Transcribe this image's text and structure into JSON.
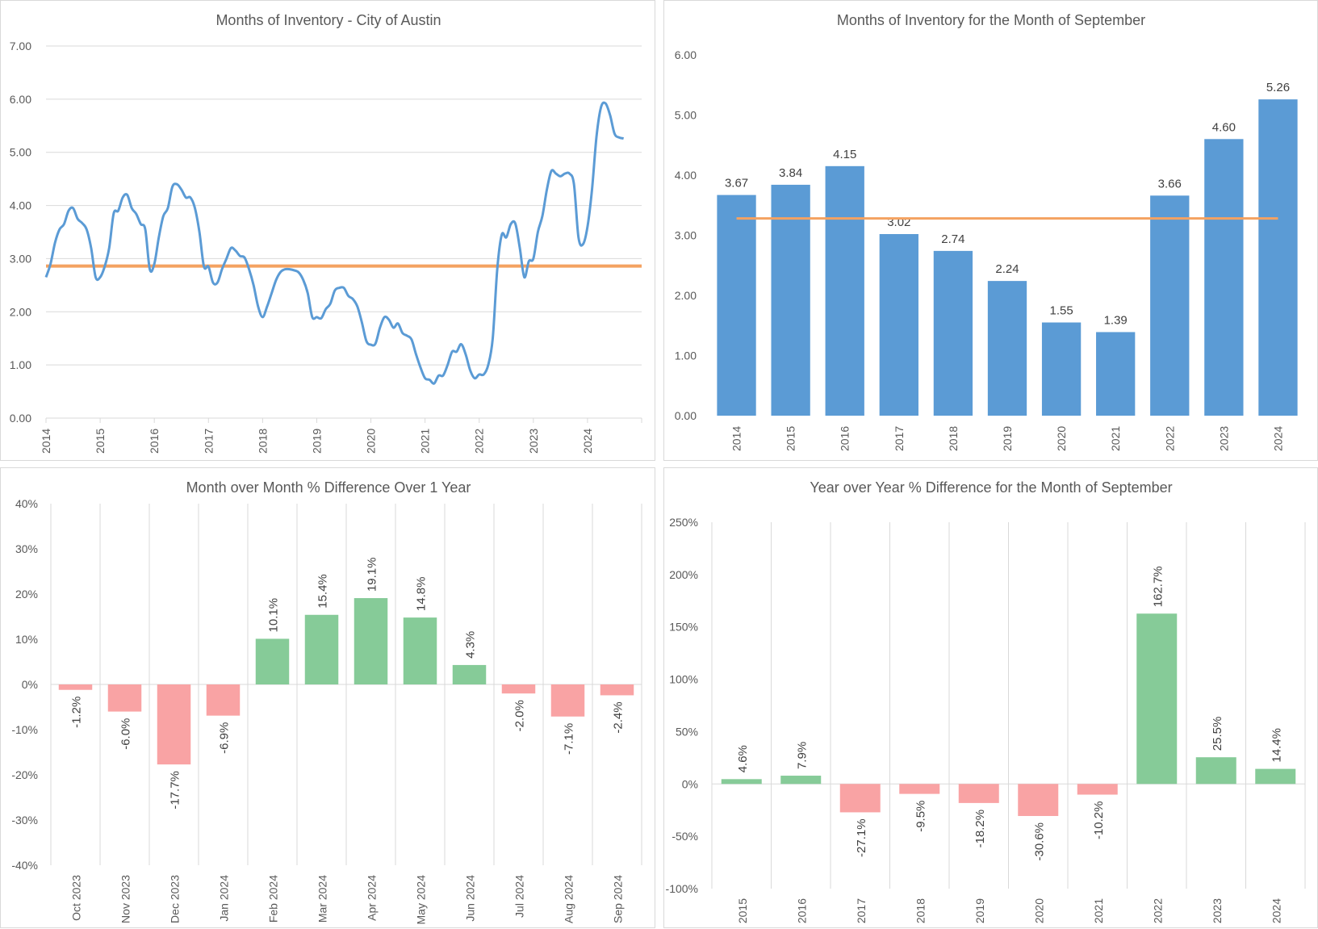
{
  "colors": {
    "line": "#5B9BD5",
    "average": "#F4A261",
    "bar": "#5B9BD5",
    "positive": "#86CB98",
    "negative": "#F9A3A4",
    "negative_label": "#FF0000",
    "grid": "#D9D9D9",
    "text": "#595959"
  },
  "chart_data": [
    {
      "type": "line",
      "title": "Months of Inventory - City of Austin",
      "x_start": "2014-01",
      "frequency": "monthly",
      "x_tick_labels": [
        "2014",
        "2015",
        "2016",
        "2017",
        "2018",
        "2019",
        "2020",
        "2021",
        "2022",
        "2023",
        "2024"
      ],
      "y_tick_labels": [
        "0.00",
        "1.00",
        "2.00",
        "3.00",
        "4.00",
        "5.00",
        "6.00",
        "7.00"
      ],
      "ylim": [
        0,
        7
      ],
      "grid": "horizontal",
      "series": [
        {
          "values": [
            2.65,
            2.9,
            3.3,
            3.55,
            3.65,
            3.9,
            3.95,
            3.75,
            3.67,
            3.55,
            3.2,
            2.65,
            2.65,
            2.85,
            3.2,
            3.85,
            3.9,
            4.15,
            4.2,
            3.95,
            3.84,
            3.65,
            3.55,
            2.8,
            2.9,
            3.4,
            3.8,
            3.95,
            4.35,
            4.4,
            4.3,
            4.15,
            4.15,
            3.95,
            3.5,
            2.85,
            2.85,
            2.55,
            2.55,
            2.8,
            3.0,
            3.2,
            3.15,
            3.05,
            3.02,
            2.8,
            2.5,
            2.1,
            1.9,
            2.1,
            2.35,
            2.6,
            2.75,
            2.8,
            2.8,
            2.78,
            2.74,
            2.6,
            2.35,
            1.9,
            1.9,
            1.88,
            2.05,
            2.15,
            2.4,
            2.45,
            2.45,
            2.3,
            2.24,
            2.1,
            1.8,
            1.45,
            1.38,
            1.4,
            1.7,
            1.9,
            1.85,
            1.7,
            1.78,
            1.6,
            1.55,
            1.48,
            1.2,
            0.95,
            0.75,
            0.72,
            0.65,
            0.8,
            0.8,
            1.0,
            1.25,
            1.25,
            1.39,
            1.2,
            0.9,
            0.75,
            0.82,
            0.82,
            1.0,
            1.5,
            2.8,
            3.45,
            3.4,
            3.65,
            3.66,
            3.2,
            2.65,
            2.95,
            3.0,
            3.5,
            3.8,
            4.3,
            4.65,
            4.6,
            4.55,
            4.6,
            4.6,
            4.4,
            3.4,
            3.27,
            3.6,
            4.3,
            5.3,
            5.85,
            5.92,
            5.7,
            5.35,
            5.28,
            5.26
          ]
        },
        {
          "values_constant": 2.86
        }
      ]
    },
    {
      "type": "bar",
      "title": "Months of Inventory for the Month of September",
      "categories": [
        "2014",
        "2015",
        "2016",
        "2017",
        "2018",
        "2019",
        "2020",
        "2021",
        "2022",
        "2023",
        "2024"
      ],
      "values": [
        3.67,
        3.84,
        4.15,
        3.02,
        2.74,
        2.24,
        1.55,
        1.39,
        3.66,
        4.6,
        5.26
      ],
      "data_labels": [
        "3.67",
        "3.84",
        "4.15",
        "3.02",
        "2.74",
        "2.24",
        "1.55",
        "1.39",
        "3.66",
        "4.60",
        "5.26"
      ],
      "average_line": 3.28,
      "y_tick_labels": [
        "0.00",
        "1.00",
        "2.00",
        "3.00",
        "4.00",
        "5.00",
        "6.00"
      ],
      "ylim": [
        0,
        6
      ],
      "grid": "none"
    },
    {
      "type": "bar",
      "title": "Month over Month % Difference Over 1 Year",
      "categories": [
        "Oct 2023",
        "Nov 2023",
        "Dec 2023",
        "Jan 2024",
        "Feb 2024",
        "Mar 2024",
        "Apr 2024",
        "May 2024",
        "Jun 2024",
        "Jul 2024",
        "Aug 2024",
        "Sep 2024"
      ],
      "values": [
        -1.2,
        -6.0,
        -17.7,
        -6.9,
        10.1,
        15.4,
        19.1,
        14.8,
        4.3,
        -2.0,
        -7.1,
        -2.4
      ],
      "data_labels": [
        "-1.2%",
        "-6.0%",
        "-17.7%",
        "-6.9%",
        "10.1%",
        "15.4%",
        "19.1%",
        "14.8%",
        "4.3%",
        "-2.0%",
        "-7.1%",
        "-2.4%"
      ],
      "y_tick_labels": [
        "-40%",
        "-30%",
        "-20%",
        "-10%",
        "0%",
        "10%",
        "20%",
        "30%",
        "40%"
      ],
      "ylim": [
        -40,
        40
      ],
      "grid": "vertical"
    },
    {
      "type": "bar",
      "title": "Year over Year % Difference for the Month of September",
      "categories": [
        "2015",
        "2016",
        "2017",
        "2018",
        "2019",
        "2020",
        "2021",
        "2022",
        "2023",
        "2024"
      ],
      "values": [
        4.6,
        7.9,
        -27.1,
        -9.5,
        -18.2,
        -30.6,
        -10.2,
        162.7,
        25.5,
        14.4
      ],
      "data_labels": [
        "4.6%",
        "7.9%",
        "-27.1%",
        "-9.5%",
        "-18.2%",
        "-30.6%",
        "-10.2%",
        "162.7%",
        "25.5%",
        "14.4%"
      ],
      "y_tick_labels": [
        "-100%",
        "-50%",
        "0%",
        "50%",
        "100%",
        "150%",
        "200%",
        "250%"
      ],
      "ylim": [
        -100,
        250
      ],
      "grid": "vertical"
    }
  ]
}
